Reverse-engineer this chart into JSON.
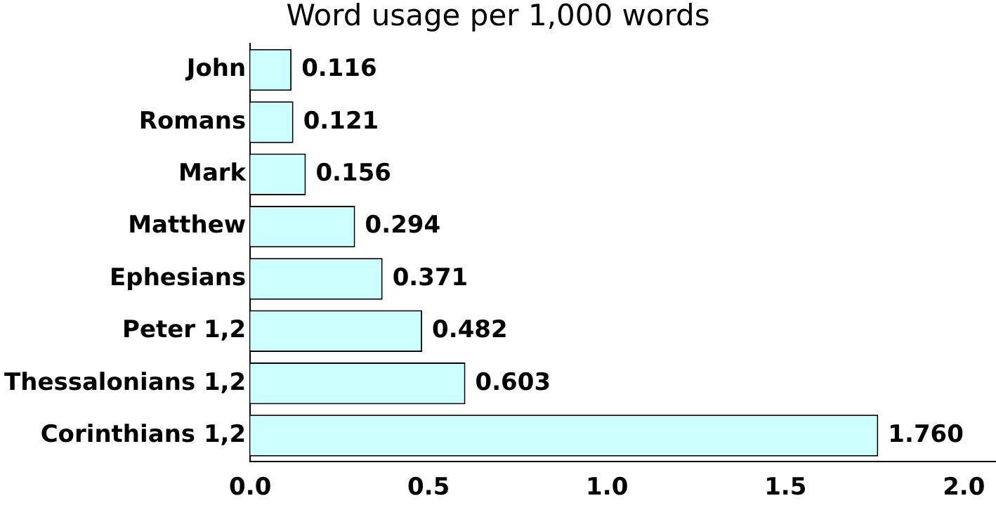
{
  "chart_data": {
    "type": "bar",
    "orientation": "horizontal",
    "title": "Word usage per 1,000 words",
    "categories": [
      "John",
      "Romans",
      "Mark",
      "Matthew",
      "Ephesians",
      "Peter 1,2",
      "Thessalonians 1,2",
      "Corinthians 1,2"
    ],
    "values": [
      0.116,
      0.121,
      0.156,
      0.294,
      0.371,
      0.482,
      0.603,
      1.76
    ],
    "value_labels": [
      "0.116",
      "0.121",
      "0.156",
      "0.294",
      "0.371",
      "0.482",
      "0.603",
      "1.760"
    ],
    "color": "#ccffff",
    "xlim": [
      0,
      2.09
    ],
    "xticks": [
      {
        "value": 0,
        "label": "0.0"
      },
      {
        "value": 0.5,
        "label": "0.5"
      },
      {
        "value": 1,
        "label": "1.0"
      },
      {
        "value": 1.5,
        "label": "1.5"
      },
      {
        "value": 2,
        "label": "2.0"
      }
    ],
    "grid": false,
    "legend": false
  }
}
